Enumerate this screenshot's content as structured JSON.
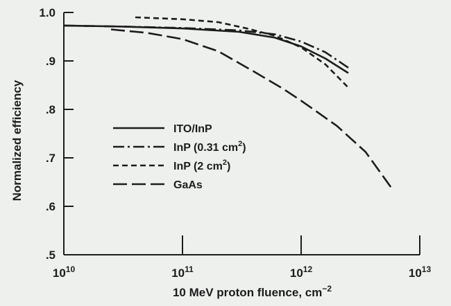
{
  "chart_data": {
    "type": "line",
    "title": "",
    "xlabel": "10 MeV proton fluence, cm",
    "xlabel_sup": "−2",
    "ylabel": "Normalized efficiency",
    "x_scale": "log",
    "xlim": [
      10000000000.0,
      10000000000000.0
    ],
    "ylim": [
      0.5,
      1.0
    ],
    "x_ticks": [
      {
        "value": 10000000000.0,
        "base": "10",
        "exp": "10"
      },
      {
        "value": 100000000000.0,
        "base": "10",
        "exp": "11"
      },
      {
        "value": 1000000000000.0,
        "base": "10",
        "exp": "12"
      },
      {
        "value": 10000000000000.0,
        "base": "10",
        "exp": "13"
      }
    ],
    "y_ticks": [
      {
        "value": 1.0,
        "label": "1.0"
      },
      {
        "value": 0.9,
        "label": ".9"
      },
      {
        "value": 0.8,
        "label": ".8"
      },
      {
        "value": 0.7,
        "label": ".7"
      },
      {
        "value": 0.6,
        "label": ".6"
      },
      {
        "value": 0.5,
        "label": ".5"
      }
    ],
    "grid": false,
    "legend_position": "center-left",
    "series": [
      {
        "name": "ITO/InP",
        "label_main": "ITO/InP",
        "label_sup": "",
        "label_tail": "",
        "dash": "",
        "points": [
          [
            10000000000.0,
            0.973
          ],
          [
            30000000000.0,
            0.971
          ],
          [
            100000000000.0,
            0.967
          ],
          [
            300000000000.0,
            0.96
          ],
          [
            600000000000.0,
            0.948
          ],
          [
            1000000000000.0,
            0.93
          ],
          [
            1600000000000.0,
            0.905
          ],
          [
            2500000000000.0,
            0.875
          ]
        ]
      },
      {
        "name": "InP (0.31 cm2)",
        "label_main": "InP (0.31 cm",
        "label_sup": "2",
        "label_tail": ")",
        "dash": "16 5 3 5",
        "points": [
          [
            10000000000.0,
            0.973
          ],
          [
            30000000000.0,
            0.971
          ],
          [
            100000000000.0,
            0.968
          ],
          [
            300000000000.0,
            0.963
          ],
          [
            600000000000.0,
            0.955
          ],
          [
            1000000000000.0,
            0.94
          ],
          [
            1600000000000.0,
            0.918
          ],
          [
            2500000000000.0,
            0.886
          ]
        ]
      },
      {
        "name": "InP (2 cm2)",
        "label_main": "InP (2 cm",
        "label_sup": "2",
        "label_tail": ")",
        "dash": "8 5",
        "points": [
          [
            40000000000.0,
            0.99
          ],
          [
            100000000000.0,
            0.986
          ],
          [
            200000000000.0,
            0.98
          ],
          [
            350000000000.0,
            0.967
          ],
          [
            600000000000.0,
            0.952
          ],
          [
            1000000000000.0,
            0.928
          ],
          [
            1600000000000.0,
            0.893
          ],
          [
            2500000000000.0,
            0.845
          ]
        ]
      },
      {
        "name": "GaAs",
        "label_main": "GaAs",
        "label_sup": "",
        "label_tail": "",
        "dash": "20 7",
        "points": [
          [
            25000000000.0,
            0.965
          ],
          [
            50000000000.0,
            0.958
          ],
          [
            100000000000.0,
            0.945
          ],
          [
            200000000000.0,
            0.92
          ],
          [
            400000000000.0,
            0.878
          ],
          [
            700000000000.0,
            0.843
          ],
          [
            1000000000000.0,
            0.818
          ],
          [
            2000000000000.0,
            0.766
          ],
          [
            3500000000000.0,
            0.712
          ],
          [
            6000000000000.0,
            0.632
          ]
        ]
      }
    ]
  }
}
